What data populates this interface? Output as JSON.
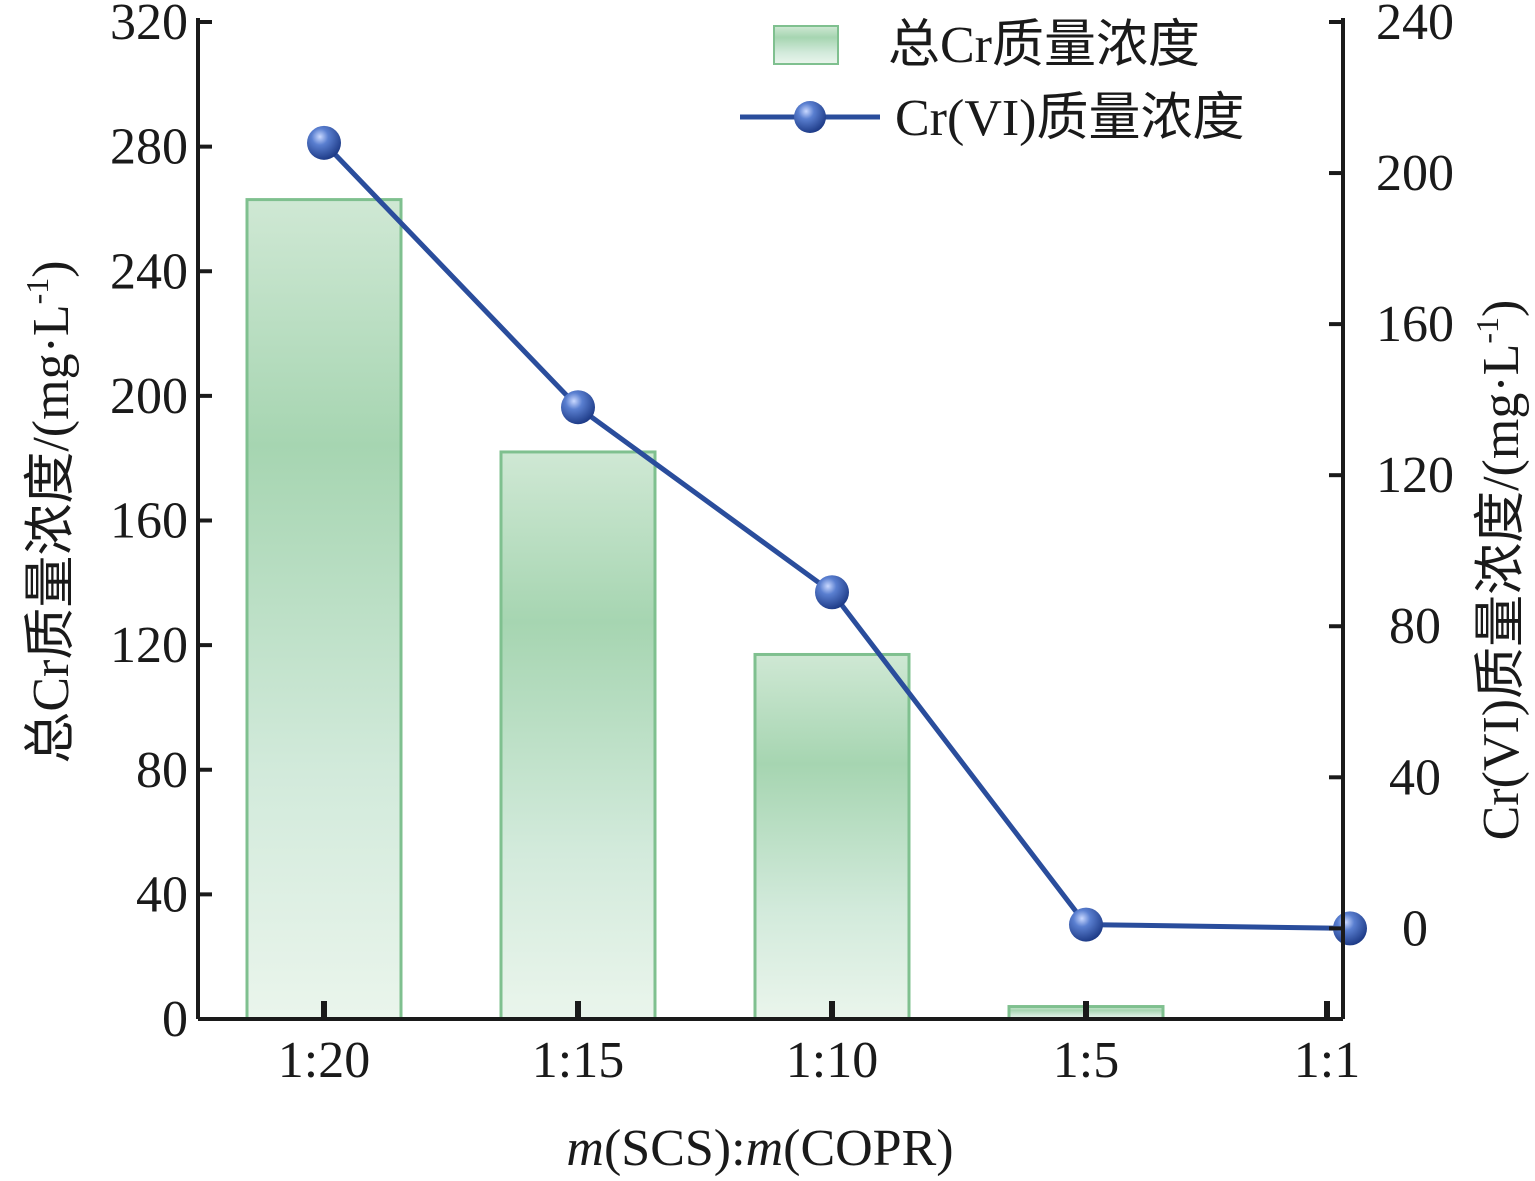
{
  "chart_data": {
    "type": "bar+line",
    "categories": [
      "1:20",
      "1:15",
      "1:10",
      "1:5",
      "1:1"
    ],
    "xlabel": {
      "italic_prefix": "m",
      "middle": "(SCS):",
      "italic_mid": "m",
      "suffix": "(COPR)"
    },
    "ylabel_left": "总Cr质量浓度/(mg·L",
    "ylabel_left_sup": "-1",
    "ylabel_left_close": ")",
    "ylabel_right": "Cr(VI)质量浓度/(mg·L",
    "ylabel_right_sup": "-1",
    "ylabel_right_close": ")",
    "y_left": {
      "min": 0,
      "max": 320,
      "ticks": [
        0,
        40,
        80,
        120,
        160,
        200,
        240,
        280,
        320
      ]
    },
    "y_right": {
      "min": -24,
      "max": 240,
      "ticks": [
        0,
        40,
        80,
        120,
        160,
        200,
        240
      ]
    },
    "series": [
      {
        "name": "总Cr质量浓度",
        "kind": "bar",
        "axis": "left",
        "values": [
          263,
          182,
          117,
          4,
          null
        ],
        "color": "#7fc08f"
      },
      {
        "name": "Cr(VI)质量浓度",
        "kind": "line",
        "axis": "right",
        "values": [
          208,
          138,
          89,
          1,
          0
        ],
        "color": "#2a4d9c"
      }
    ],
    "legend": {
      "placement": "top-right"
    }
  }
}
